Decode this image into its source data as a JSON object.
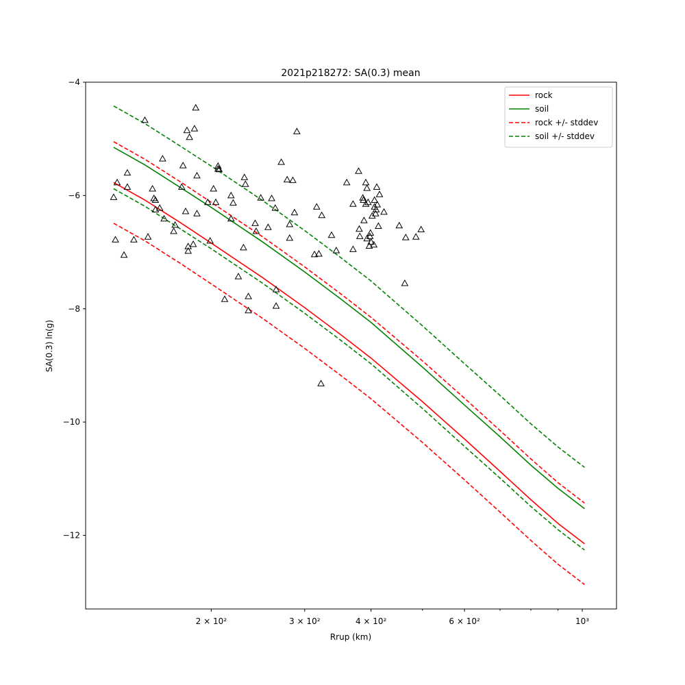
{
  "chart_data": {
    "type": "line",
    "title": "2021p218272: SA(0.3) mean",
    "xlabel": "Rrup (km)",
    "ylabel": "SA(0.3) ln(g)",
    "xscale": "log",
    "xlim": [
      116,
      1160
    ],
    "ylim": [
      -13.3,
      -4.0
    ],
    "x_ticks": [
      {
        "value": 200,
        "label": "2 × 10²"
      },
      {
        "value": 300,
        "label": "3 × 10²"
      },
      {
        "value": 400,
        "label": "4 × 10²"
      },
      {
        "value": 600,
        "label": "6 × 10²"
      },
      {
        "value": 1000,
        "label": "10³"
      }
    ],
    "x_minor_ticks": [
      500,
      700,
      800,
      900
    ],
    "y_ticks": [
      -12,
      -10,
      -8,
      -6,
      -4
    ],
    "y_tick_labels": [
      "−12",
      "−10",
      "−8",
      "−6",
      "−4"
    ],
    "grid": false,
    "legend_position": "top-right",
    "x": [
      131,
      150,
      175,
      200,
      250,
      300,
      350,
      400,
      500,
      600,
      700,
      800,
      900,
      1010
    ],
    "series": [
      {
        "name": "rock",
        "color": "#ff0000",
        "dash": "solid",
        "values": [
          -5.77,
          -6.08,
          -6.48,
          -6.84,
          -7.45,
          -7.98,
          -8.45,
          -8.87,
          -9.64,
          -10.3,
          -10.87,
          -11.37,
          -11.79,
          -12.15
        ]
      },
      {
        "name": "soil",
        "color": "#008000",
        "dash": "solid",
        "values": [
          -5.15,
          -5.46,
          -5.86,
          -6.21,
          -6.82,
          -7.35,
          -7.82,
          -8.24,
          -9.03,
          -9.7,
          -10.26,
          -10.76,
          -11.17,
          -11.53
        ]
      },
      {
        "name": "rock +/- stddev",
        "color": "#ff0000",
        "dash": "dashed",
        "values": [
          -5.05,
          -5.36,
          -5.76,
          -6.12,
          -6.73,
          -7.26,
          -7.73,
          -8.15,
          -8.92,
          -9.58,
          -10.15,
          -10.65,
          -11.07,
          -11.43
        ]
      },
      {
        "name": "",
        "color": "#ff0000",
        "dash": "dashed",
        "values": [
          -6.49,
          -6.8,
          -7.2,
          -7.56,
          -8.17,
          -8.7,
          -9.17,
          -9.59,
          -10.36,
          -11.02,
          -11.59,
          -12.09,
          -12.51,
          -12.87
        ]
      },
      {
        "name": "soil +/- stddev",
        "color": "#008000",
        "dash": "dashed",
        "values": [
          -4.42,
          -4.73,
          -5.13,
          -5.48,
          -6.09,
          -6.62,
          -7.09,
          -7.51,
          -8.3,
          -8.97,
          -9.53,
          -10.03,
          -10.44,
          -10.8
        ]
      },
      {
        "name": "",
        "color": "#008000",
        "dash": "dashed",
        "values": [
          -5.88,
          -6.19,
          -6.59,
          -6.94,
          -7.55,
          -8.08,
          -8.55,
          -8.97,
          -9.76,
          -10.43,
          -10.99,
          -11.49,
          -11.9,
          -12.26
        ]
      }
    ],
    "observations": {
      "marker": "open-triangle",
      "color": "#000000",
      "points": [
        [
          131,
          -6.03
        ],
        [
          132,
          -6.78
        ],
        [
          133,
          -5.77
        ],
        [
          137,
          -7.05
        ],
        [
          139,
          -5.6
        ],
        [
          139,
          -5.85
        ],
        [
          143,
          -6.78
        ],
        [
          150,
          -4.67
        ],
        [
          152,
          -6.73
        ],
        [
          155,
          -5.88
        ],
        [
          156,
          -6.05
        ],
        [
          157,
          -6.08
        ],
        [
          157,
          -6.25
        ],
        [
          160,
          -6.22
        ],
        [
          162,
          -5.35
        ],
        [
          163,
          -6.41
        ],
        [
          170,
          -6.63
        ],
        [
          171,
          -6.52
        ],
        [
          176,
          -5.85
        ],
        [
          177,
          -5.47
        ],
        [
          179,
          -6.28
        ],
        [
          180,
          -4.85
        ],
        [
          181,
          -6.98
        ],
        [
          181,
          -6.9
        ],
        [
          182,
          -4.97
        ],
        [
          185,
          -6.86
        ],
        [
          186,
          -4.82
        ],
        [
          187,
          -4.45
        ],
        [
          188,
          -5.65
        ],
        [
          188,
          -6.32
        ],
        [
          197,
          -6.12
        ],
        [
          199,
          -6.8
        ],
        [
          202,
          -5.88
        ],
        [
          204,
          -6.12
        ],
        [
          206,
          -5.48
        ],
        [
          206,
          -5.53
        ],
        [
          207,
          -5.54
        ],
        [
          212,
          -7.83
        ],
        [
          218,
          -6.41
        ],
        [
          218,
          -6.0
        ],
        [
          220,
          -6.13
        ],
        [
          225,
          -7.43
        ],
        [
          230,
          -6.92
        ],
        [
          231,
          -5.68
        ],
        [
          232,
          -5.8
        ],
        [
          235,
          -7.78
        ],
        [
          235,
          -8.03
        ],
        [
          242,
          -6.49
        ],
        [
          243,
          -6.63
        ],
        [
          248,
          -6.04
        ],
        [
          256,
          -6.56
        ],
        [
          260,
          -6.05
        ],
        [
          264,
          -6.22
        ],
        [
          265,
          -7.95
        ],
        [
          265,
          -7.66
        ],
        [
          271,
          -5.41
        ],
        [
          278,
          -5.72
        ],
        [
          281,
          -6.51
        ],
        [
          281,
          -6.75
        ],
        [
          285,
          -5.73
        ],
        [
          287,
          -6.3
        ],
        [
          290,
          -4.87
        ],
        [
          313,
          -7.04
        ],
        [
          316,
          -6.2
        ],
        [
          319,
          -7.03
        ],
        [
          323,
          -6.35
        ],
        [
          322,
          -9.32
        ],
        [
          337,
          -6.7
        ],
        [
          344,
          -6.97
        ],
        [
          360,
          -5.77
        ],
        [
          370,
          -6.15
        ],
        [
          370,
          -6.95
        ],
        [
          379,
          -5.57
        ],
        [
          380,
          -6.59
        ],
        [
          381,
          -6.72
        ],
        [
          386,
          -6.04
        ],
        [
          387,
          -6.08
        ],
        [
          388,
          -6.44
        ],
        [
          391,
          -6.15
        ],
        [
          391,
          -5.77
        ],
        [
          393,
          -6.76
        ],
        [
          393,
          -5.87
        ],
        [
          395,
          -6.12
        ],
        [
          397,
          -6.89
        ],
        [
          398,
          -6.72
        ],
        [
          399,
          -6.66
        ],
        [
          400,
          -6.82
        ],
        [
          402,
          -6.36
        ],
        [
          405,
          -6.87
        ],
        [
          406,
          -6.2
        ],
        [
          406,
          -6.08
        ],
        [
          408,
          -6.32
        ],
        [
          409,
          -6.25
        ],
        [
          410,
          -5.85
        ],
        [
          411,
          -6.16
        ],
        [
          413,
          -6.54
        ],
        [
          415,
          -5.98
        ],
        [
          423,
          -6.29
        ],
        [
          452,
          -6.53
        ],
        [
          463,
          -7.55
        ],
        [
          465,
          -6.74
        ],
        [
          486,
          -6.73
        ],
        [
          497,
          -6.6
        ]
      ]
    }
  }
}
